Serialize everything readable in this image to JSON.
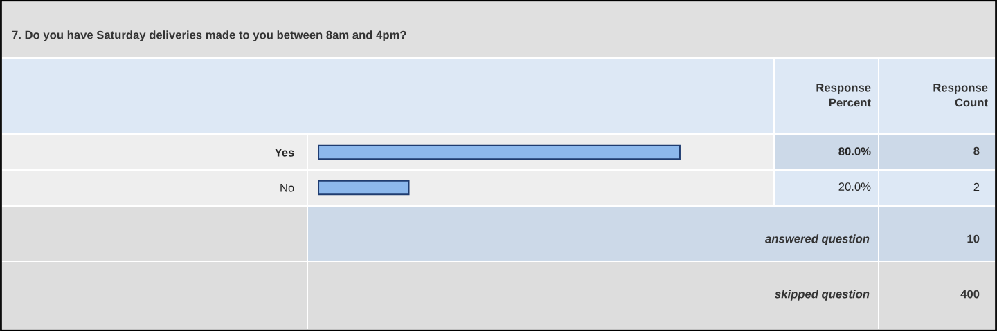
{
  "chart_data": {
    "type": "bar",
    "orientation": "horizontal",
    "title": "7. Do you have Saturday deliveries made to you between 8am and 4pm?",
    "categories": [
      "Yes",
      "No"
    ],
    "values": [
      80.0,
      20.0
    ],
    "value_labels": [
      "80.0%",
      "20.0%"
    ],
    "color": "#8cb8ec",
    "tick_labels": "y",
    "grid": false,
    "legend": false,
    "annotations": [
      "Response Percent",
      "Response Count",
      "8",
      "2",
      "answered question",
      "10",
      "skipped question",
      "400"
    ]
  }
}
